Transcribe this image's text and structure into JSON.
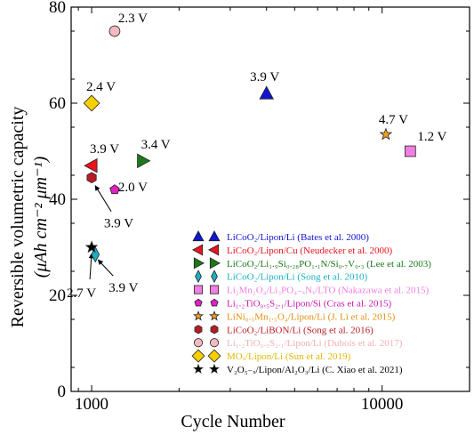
{
  "chart_data": {
    "type": "scatter",
    "title": "",
    "xlabel": "Cycle Number",
    "ylabel_line1": "Reversible volumetric capacity",
    "ylabel_line2": "(μAh cm⁻² μm⁻¹)",
    "x_scale": "log",
    "xlim": [
      850,
      20000
    ],
    "ylim": [
      0,
      80
    ],
    "x_ticks": [
      1000,
      10000
    ],
    "x_tick_labels": [
      "1000",
      "10000"
    ],
    "y_ticks": [
      0,
      20,
      40,
      60,
      80
    ],
    "y_tick_labels": [
      "0",
      "20",
      "40",
      "60",
      "80"
    ],
    "grid": false,
    "legend_position": "bottom-right",
    "series": [
      {
        "name": "LiCoO₂/Lipon/Li (Bates et al. 2000)",
        "marker": "triangle-up",
        "color": "#1414d0",
        "legend_color": "#1414d0",
        "x": [
          4000
        ],
        "y": [
          62
        ],
        "label": "3.9 V"
      },
      {
        "name": "LiCoO₂/Lipon/Cu (Neudecker et al. 2000)",
        "marker": "triangle-left",
        "color": "#e8141e",
        "legend_color": "#e8141e",
        "x": [
          1000
        ],
        "y": [
          47
        ],
        "label": "3.9 V"
      },
      {
        "name": "LiCoO₂/Li₁.₉Si₀.₂₈PO₁.₁N/Si₀.₇V₀.₃ (Lee et al. 2003)",
        "marker": "triangle-right",
        "color": "#1a7a1a",
        "legend_color": "#1a7a1a",
        "x": [
          1500
        ],
        "y": [
          48
        ],
        "label": "3.4 V"
      },
      {
        "name": "LiCoO₂/Lipon/Li (Song et al. 2010)",
        "marker": "diamond-thin",
        "color": "#1ab0c0",
        "legend_color": "#1ab0c0",
        "x": [
          1030
        ],
        "y": [
          28.5
        ],
        "label": "3.9 V"
      },
      {
        "name": "Li₂Mn₂O₄/Li₃PO₄₋ₓNₓ/LTO (Nakazawa et al. 2015)",
        "marker": "square",
        "color": "#f080e0",
        "legend_color": "#f080e0",
        "x": [
          12500
        ],
        "y": [
          50
        ],
        "label": "1.2 V"
      },
      {
        "name": "Li₁.₂TiO₀.₅S₂.₁/Lipon/Si (Cras et al. 2015)",
        "marker": "pentagon",
        "color": "#e020c0",
        "legend_color": "#c818b0",
        "x": [
          1200
        ],
        "y": [
          42
        ],
        "label": "2.0 V"
      },
      {
        "name": "LiNi₀.₅Mn₁.₅O₄/Lipon/Li (J. Li et al. 2015)",
        "marker": "star",
        "color": "#f0a020",
        "legend_color": "#e09010",
        "x": [
          10300
        ],
        "y": [
          53.5
        ],
        "label": "4.7 V"
      },
      {
        "name": "LiCoO₂/LiBON/Li (Song et al. 2016)",
        "marker": "hexagon",
        "color": "#b81c24",
        "legend_color": "#b81c24",
        "x": [
          1000
        ],
        "y": [
          44.5
        ],
        "label": ""
      },
      {
        "name": "Li₁.₂TiO₀.₅S₂.₁/Lipon/Li (Dubois et al. 2017)",
        "marker": "circle",
        "color": "#f4b8c0",
        "legend_color": "#f0b0b8",
        "x": [
          1200
        ],
        "y": [
          75
        ],
        "label": "2.3 V"
      },
      {
        "name": "MOₓ/Lipon/Li (Sun et al. 2019)",
        "marker": "diamond",
        "color": "#f8d000",
        "legend_color": "#e0b800",
        "x": [
          1000
        ],
        "y": [
          60
        ],
        "label": "2.4 V"
      },
      {
        "name": "V₂O₅₋ₓ/Lipon/Al₂O₃/Li (C. Xiao et al. 2021)",
        "marker": "star",
        "color": "#000000",
        "legend_color": "#000000",
        "x": [
          1000
        ],
        "y": [
          30
        ],
        "label": "2.7 V"
      }
    ],
    "extra_annotation": "3.9 V"
  }
}
